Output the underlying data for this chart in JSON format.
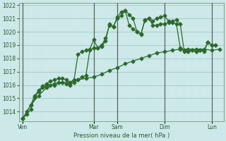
{
  "xlabel": "Pression niveau de la mer( hPa )",
  "background_color": "#cce8e8",
  "grid_color_major": "#aacccc",
  "grid_color_minor": "#d8ecec",
  "line_color1": "#2d6a2d",
  "line_color2": "#2d6a2d",
  "line_color3": "#2d6a2d",
  "ylim": [
    1013.3,
    1022.2
  ],
  "yticks": [
    1014,
    1015,
    1016,
    1017,
    1018,
    1019,
    1020,
    1021,
    1022
  ],
  "day_labels": [
    "Ven",
    "Mar",
    "Sam",
    "Dim",
    "Lun"
  ],
  "day_positions": [
    0,
    36,
    48,
    72,
    96
  ],
  "vline_positions": [
    0,
    36,
    48,
    72,
    96
  ],
  "xlim": [
    -2,
    102
  ],
  "series1_x": [
    0,
    2,
    4,
    6,
    8,
    10,
    12,
    14,
    16,
    18,
    20,
    22,
    24,
    26,
    28,
    30,
    32,
    34,
    36,
    38,
    40,
    42,
    44,
    46,
    48,
    50,
    52,
    54,
    56,
    58,
    60,
    62,
    64,
    66,
    68,
    70,
    72,
    74,
    76,
    78,
    80,
    82,
    84,
    86,
    88,
    90,
    92,
    94,
    96,
    98
  ],
  "series1_y": [
    1013.5,
    1013.8,
    1014.2,
    1015.1,
    1015.5,
    1015.8,
    1015.9,
    1016.0,
    1016.1,
    1016.2,
    1016.2,
    1016.1,
    1016.0,
    1016.2,
    1016.4,
    1016.6,
    1016.7,
    1018.6,
    1018.8,
    1018.8,
    1018.9,
    1019.3,
    1020.6,
    1020.4,
    1021.1,
    1021.5,
    1021.6,
    1021.3,
    1021.0,
    1020.0,
    1019.8,
    1020.9,
    1021.0,
    1020.8,
    1021.0,
    1021.1,
    1021.2,
    1020.8,
    1020.7,
    1020.6,
    1018.8,
    1018.6,
    1018.5,
    1018.6,
    1018.5,
    1018.6,
    1018.6,
    1019.2,
    1019.0,
    1019.0
  ],
  "series2_x": [
    0,
    2,
    4,
    6,
    8,
    10,
    12,
    14,
    16,
    18,
    20,
    22,
    24,
    26,
    28,
    30,
    32,
    34,
    36,
    38,
    40,
    42,
    44,
    46,
    48,
    50,
    52,
    54,
    56,
    58,
    60,
    62,
    64,
    66,
    68,
    70,
    72,
    74,
    76,
    78,
    80,
    82,
    84,
    86,
    88,
    90,
    92,
    94,
    96,
    98
  ],
  "series2_y": [
    1013.5,
    1014.0,
    1014.5,
    1015.2,
    1015.6,
    1015.9,
    1016.1,
    1016.3,
    1016.4,
    1016.5,
    1016.5,
    1016.4,
    1016.2,
    1016.4,
    1018.3,
    1018.5,
    1018.6,
    1018.7,
    1019.4,
    1018.8,
    1019.0,
    1019.5,
    1020.5,
    1020.4,
    1021.0,
    1021.2,
    1021.6,
    1020.5,
    1020.2,
    1020.0,
    1019.85,
    1020.85,
    1021.0,
    1020.5,
    1020.5,
    1020.6,
    1020.6,
    1020.7,
    1020.8,
    1020.9,
    1020.6,
    1018.5,
    1018.5,
    1018.6,
    1018.5,
    1018.6,
    1018.5,
    1019.2,
    1019.0,
    1019.0
  ],
  "series3_x": [
    0,
    4,
    8,
    12,
    16,
    20,
    24,
    28,
    32,
    36,
    40,
    44,
    48,
    52,
    56,
    60,
    64,
    68,
    72,
    76,
    80,
    84,
    88,
    92,
    96,
    100
  ],
  "series3_y": [
    1013.5,
    1014.5,
    1015.2,
    1015.8,
    1016.0,
    1016.2,
    1016.2,
    1016.4,
    1016.5,
    1016.6,
    1016.8,
    1017.1,
    1017.3,
    1017.6,
    1017.8,
    1018.0,
    1018.2,
    1018.4,
    1018.5,
    1018.6,
    1018.7,
    1018.7,
    1018.7,
    1018.7,
    1018.6,
    1018.7
  ]
}
